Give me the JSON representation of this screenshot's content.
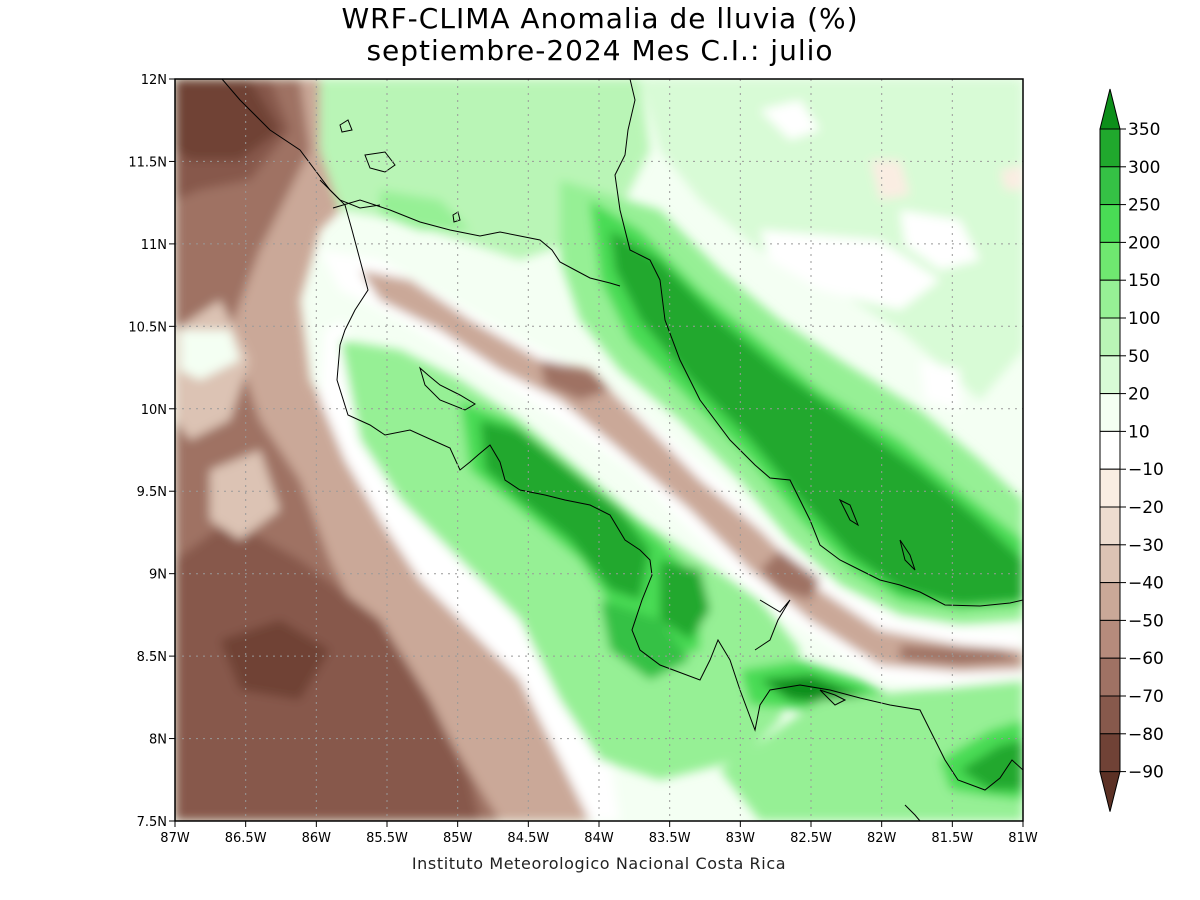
{
  "title": {
    "line1": "WRF-CLIMA Anomalia de lluvia (%)",
    "line2": "septiembre-2024 Mes C.I.: julio"
  },
  "credit": "Instituto Meteorologico Nacional Costa Rica",
  "map": {
    "lon_ticks": [
      "87W",
      "86.5W",
      "86W",
      "85.5W",
      "85W",
      "84.5W",
      "84W",
      "83.5W",
      "83W",
      "82.5W",
      "82W",
      "81.5W",
      "81W"
    ],
    "lat_ticks": [
      "12N",
      "11.5N",
      "11N",
      "10.5N",
      "10N",
      "9.5N",
      "9N",
      "8.5N",
      "8N",
      "7.5N"
    ],
    "grid": "dotted",
    "variable": "rainfall anomaly (%)"
  },
  "colorbar": {
    "labels": [
      "350",
      "300",
      "250",
      "200",
      "150",
      "100",
      "50",
      "20",
      "10",
      "-10",
      "-20",
      "-30",
      "-40",
      "-50",
      "-60",
      "-70",
      "-80",
      "-90"
    ],
    "colors": [
      "#0d8f1a",
      "#20a82d",
      "#35c145",
      "#49dc55",
      "#6fe870",
      "#96f095",
      "#b9f5b6",
      "#d8fbd6",
      "#f4fff3",
      "#ffffff",
      "#faede2",
      "#eddccf",
      "#dcc3b4",
      "#caa898",
      "#b68b7c",
      "#9f7264",
      "#87594c",
      "#704236",
      "#5c3125"
    ]
  }
}
